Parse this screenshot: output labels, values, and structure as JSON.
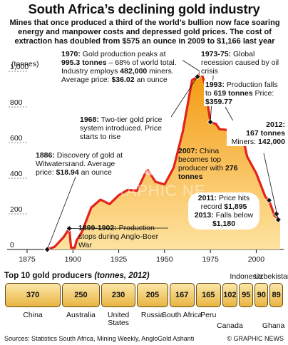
{
  "title": "South Africa’s declining gold industry",
  "subtitle": "Mines that once produced a third of the world’s bullion now face soaring energy and manpower costs and depressed gold prices. The cost of extraction has doubled from $575 an ounce in 2009 to $1,166 last year",
  "chart_data": {
    "type": "area",
    "ylabel": "(tonnes)",
    "yticks": [
      "0",
      "200",
      "400",
      "600",
      "800",
      "1,000"
    ],
    "xticks": [
      "1875",
      "1900",
      "1925",
      "1950",
      "1975",
      "2000"
    ],
    "xlim": [
      1875,
      2015
    ],
    "ylim": [
      0,
      1000
    ],
    "grid": false,
    "series": [
      {
        "x": [
          1886,
          1890,
          1895,
          1898,
          1899,
          1900,
          1901,
          1902,
          1905,
          1910,
          1915,
          1920,
          1925,
          1930,
          1935,
          1940,
          1941,
          1945,
          1950,
          1955,
          1960,
          1965,
          1968,
          1970,
          1972,
          1975,
          1978,
          1980,
          1985,
          1988,
          1990,
          1993,
          1995,
          2000,
          2005,
          2007,
          2010,
          2013
        ],
        "y": [
          0,
          15,
          70,
          118,
          10,
          10,
          10,
          50,
          100,
          235,
          280,
          255,
          305,
          335,
          330,
          440,
          445,
          380,
          365,
          460,
          665,
          950,
          970,
          995,
          930,
          715,
          705,
          675,
          670,
          620,
          605,
          619,
          522,
          428,
          295,
          276,
          190,
          167
        ],
        "markers": [
          {
            "x": 1886,
            "y": 0
          },
          {
            "x": 1898,
            "y": 118
          },
          {
            "x": 1968,
            "y": 970
          },
          {
            "x": 1970,
            "y": 995
          },
          {
            "x": 1975,
            "y": 715
          },
          {
            "x": 1993,
            "y": 619
          },
          {
            "x": 2007,
            "y": 276
          },
          {
            "x": 2011,
            "y": 200
          },
          {
            "x": 2012,
            "y": 167
          }
        ]
      }
    ]
  },
  "annotations": {
    "a1970": {
      "year": "1970:",
      "text1": " Gold production peaks at ",
      "b1": "995.3 tonnes",
      "text2": " – 68% of world total. Industry employs ",
      "b2": "482,000",
      "text3": " miners. Average price: ",
      "b3": "$36.02",
      "text4": " an ounce"
    },
    "a1973": {
      "year": "1973-75:",
      "text": " Global recession caused by oil crisis"
    },
    "a1993": {
      "year": "1993:",
      "text1": " Production falls to ",
      "b1": "619 tonnes",
      "text2": " Price: ",
      "b2": "$359.77"
    },
    "a2012": {
      "year": "2012:",
      "b1": "167 tonnes",
      "text": "Miners:",
      "b2": "142,000"
    },
    "a1968": {
      "year": "1968:",
      "text": " Two-tier gold price system introduced. Price starts to rise"
    },
    "a1886": {
      "year": "1886:",
      "text1": " Discovery of gold at Witwatersrand. Average price: ",
      "b1": "$18.94",
      "text2": " an ounce"
    },
    "a2007": {
      "year": "2007:",
      "text1": " China becomes top producer with ",
      "b1": "276 tonnes"
    },
    "a2011": {
      "year": "2011:",
      "text1": " Price hits record ",
      "b1": "$1,895",
      "year2": "2013:",
      "text2": " Falls below ",
      "b2": "$1,180"
    },
    "a1899": {
      "year": "1899-1902:",
      "text": " Production stops during Anglo-Boer War"
    }
  },
  "producers": {
    "title": "Top 10 gold producers",
    "unit": "(tonnes, 2012)",
    "items": [
      {
        "country": "China",
        "value": "370"
      },
      {
        "country": "Australia",
        "value": "250"
      },
      {
        "country": "United States",
        "value": "230"
      },
      {
        "country": "Russia",
        "value": "205"
      },
      {
        "country": "South Africa",
        "value": "167"
      },
      {
        "country": "Peru",
        "value": "165"
      },
      {
        "country": "Canada",
        "value": "102"
      },
      {
        "country": "Indonesia",
        "value": "95"
      },
      {
        "country": "Uzbekistan",
        "value": "90"
      },
      {
        "country": "Ghana",
        "value": "89"
      }
    ]
  },
  "footer": {
    "sources": "Sources: Statistics South Africa, Mining Weekly, AngloGold Ashanti",
    "credit": "© GRAPHIC NEWS"
  },
  "watermark": "GRAPHIC NEWS",
  "colors": {
    "line": "#e3231b",
    "fill_top": "#f6a315",
    "fill_bottom": "#fde7a8",
    "marker": "#111111"
  }
}
